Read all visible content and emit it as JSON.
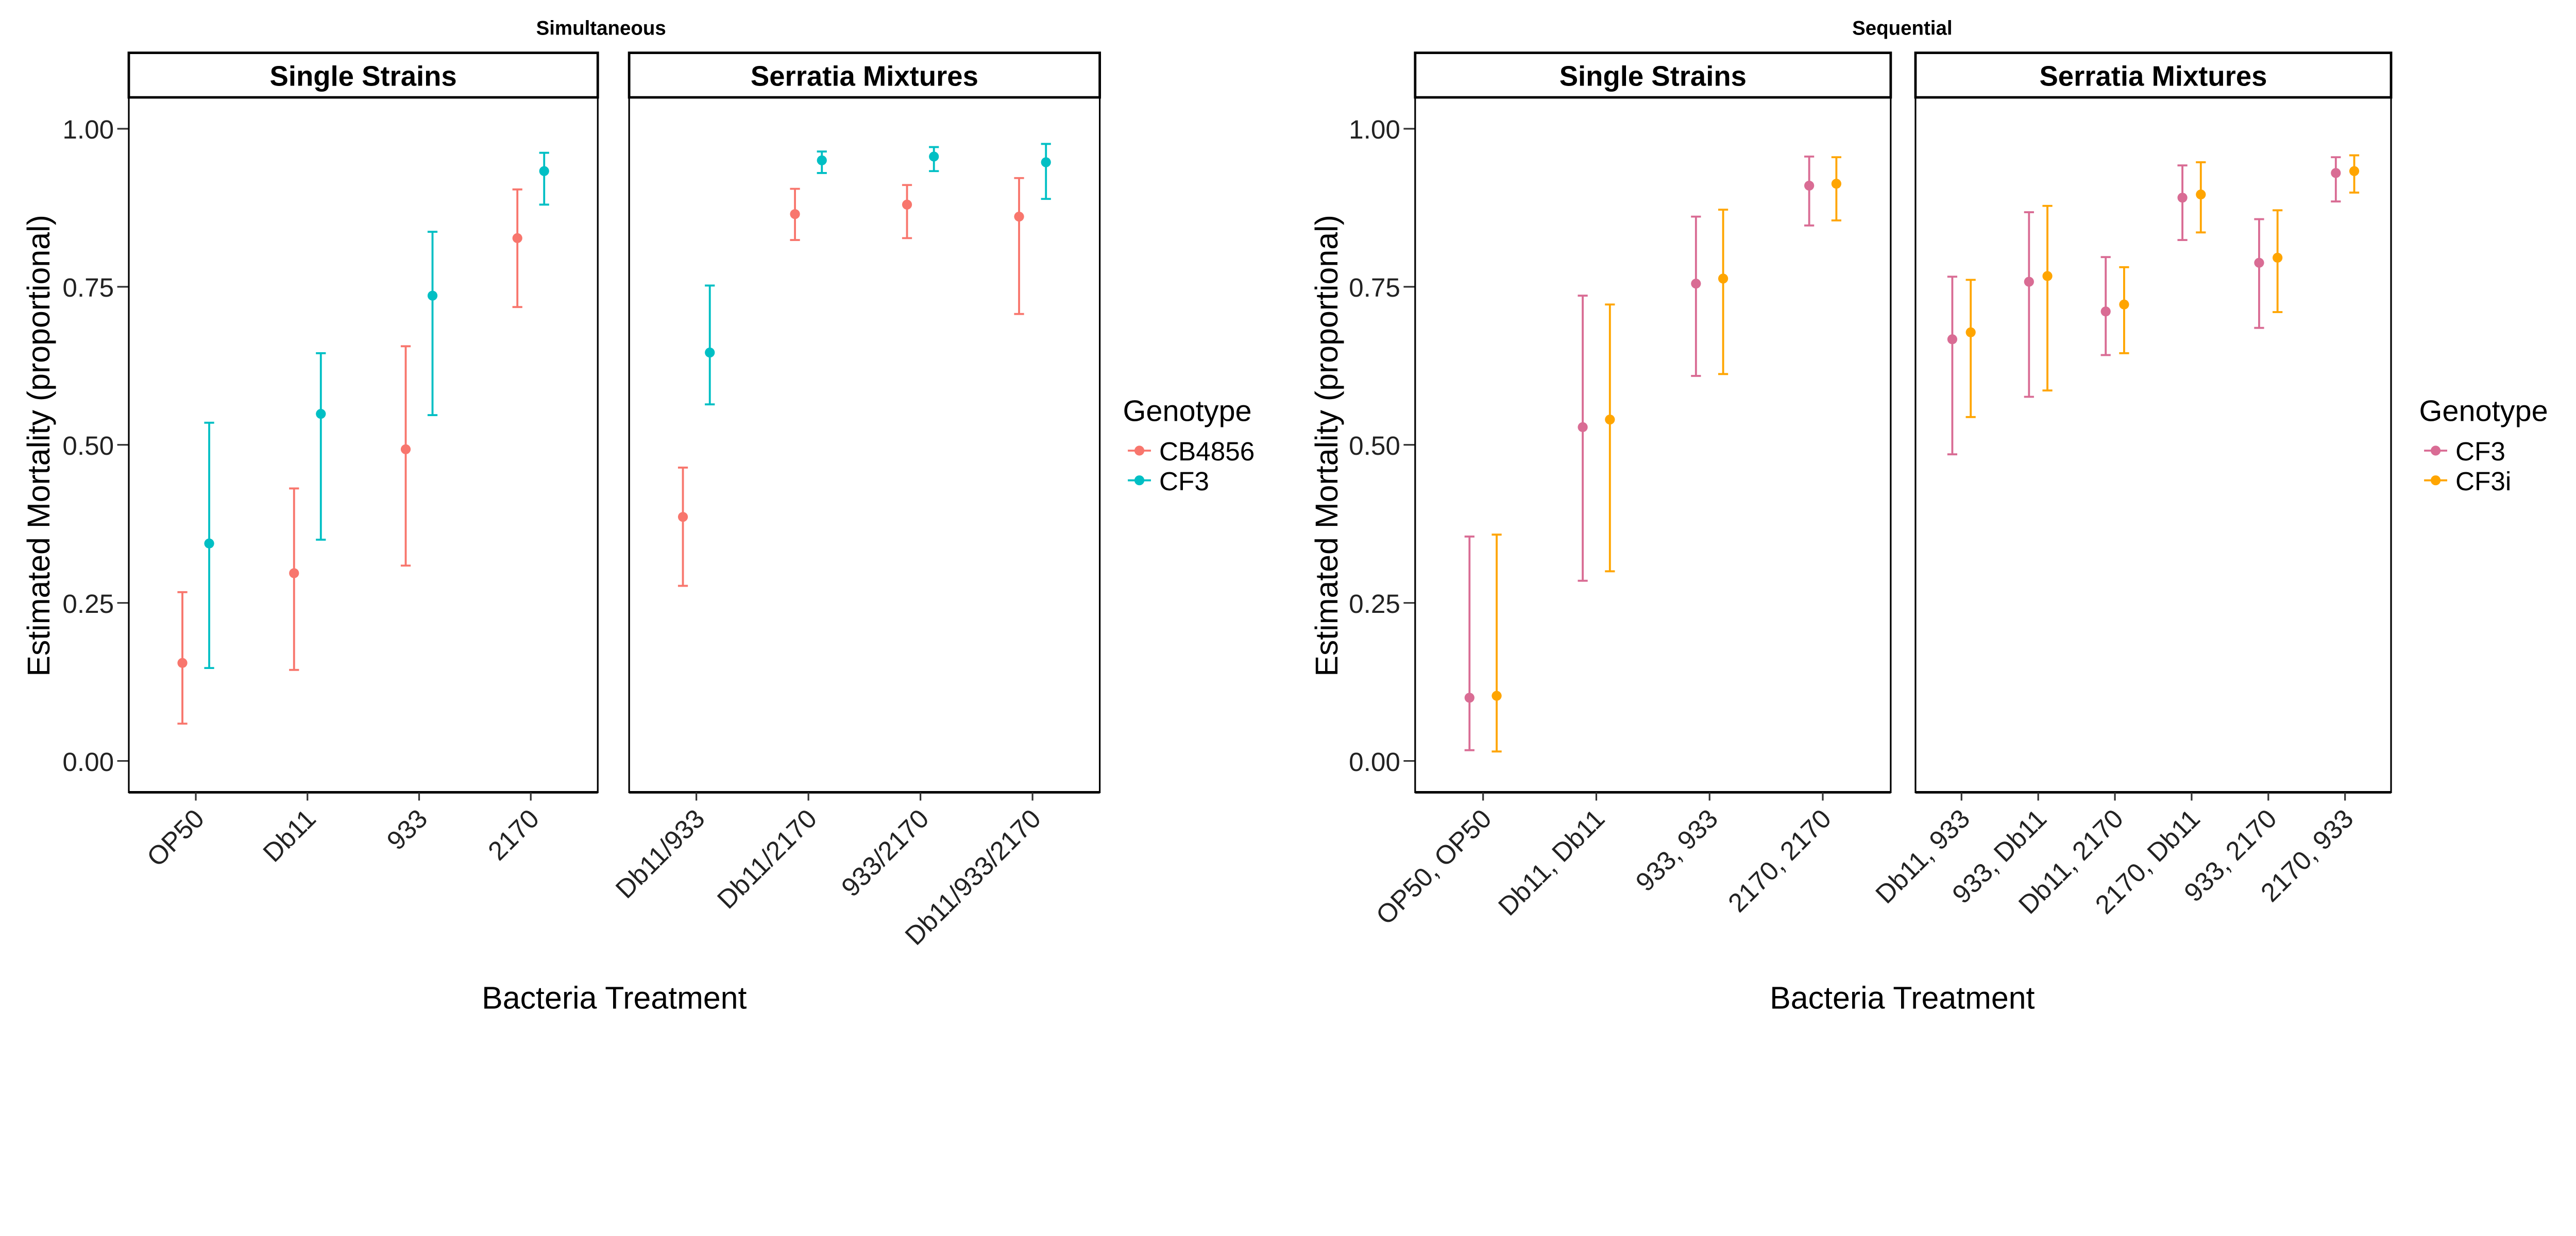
{
  "chart_data": [
    {
      "type": "scatter",
      "title": "Simultaneous",
      "xlabel": "Bacteria Treatment",
      "ylabel": "Estimated Mortality (proportional)",
      "ylim": [
        -0.05,
        1.05
      ],
      "yticks": [
        "0.00",
        "0.25",
        "0.50",
        "0.75",
        "1.00"
      ],
      "grid": false,
      "legend": {
        "title": "Genotype",
        "placement": "right",
        "entries": [
          "CB4856",
          "CF3"
        ]
      },
      "colors": {
        "CB4856": "#F8766D",
        "CF3": "#00BFC4"
      },
      "facets": [
        {
          "label": "Single Strains",
          "categories": [
            "OP50",
            "Db11",
            "933",
            "2170"
          ],
          "series": [
            {
              "name": "CB4856",
              "values": [
                0.155,
                0.297,
                0.493,
                0.827
              ],
              "lower": [
                0.059,
                0.144,
                0.309,
                0.718
              ],
              "upper": [
                0.267,
                0.431,
                0.656,
                0.904
              ]
            },
            {
              "name": "CF3",
              "values": [
                0.344,
                0.549,
                0.736,
                0.933
              ],
              "lower": [
                0.147,
                0.35,
                0.547,
                0.88
              ],
              "upper": [
                0.535,
                0.645,
                0.837,
                0.962
              ]
            }
          ]
        },
        {
          "label": "Serratia Mixtures",
          "categories": [
            "Db11/933",
            "Db11/2170",
            "933/2170",
            "Db11/933/2170"
          ],
          "series": [
            {
              "name": "CB4856",
              "values": [
                0.386,
                0.865,
                0.88,
                0.861
              ],
              "lower": [
                0.277,
                0.824,
                0.827,
                0.707
              ],
              "upper": [
                0.464,
                0.905,
                0.911,
                0.922
              ]
            },
            {
              "name": "CF3",
              "values": [
                0.646,
                0.95,
                0.956,
                0.947
              ],
              "lower": [
                0.564,
                0.93,
                0.933,
                0.889
              ],
              "upper": [
                0.752,
                0.964,
                0.971,
                0.976
              ]
            }
          ]
        }
      ]
    },
    {
      "type": "scatter",
      "title": "Sequential",
      "xlabel": "Bacteria Treatment",
      "ylabel": "Estimated Mortality (proportional)",
      "ylim": [
        -0.05,
        1.05
      ],
      "yticks": [
        "0.00",
        "0.25",
        "0.50",
        "0.75",
        "1.00"
      ],
      "grid": false,
      "legend": {
        "title": "Genotype",
        "placement": "right",
        "entries": [
          "CF3",
          "CF3i"
        ]
      },
      "colors": {
        "CF3": "#D96C94",
        "CF3i": "#FFA500"
      },
      "facets": [
        {
          "label": "Single Strains",
          "categories": [
            "OP50, OP50",
            "Db11, Db11",
            "933, 933",
            "2170, 2170"
          ],
          "series": [
            {
              "name": "CF3",
              "values": [
                0.1,
                0.528,
                0.755,
                0.91
              ],
              "lower": [
                0.017,
                0.285,
                0.609,
                0.847
              ],
              "upper": [
                0.355,
                0.736,
                0.861,
                0.956
              ]
            },
            {
              "name": "CF3i",
              "values": [
                0.103,
                0.54,
                0.763,
                0.913
              ],
              "lower": [
                0.015,
                0.3,
                0.612,
                0.855
              ],
              "upper": [
                0.358,
                0.722,
                0.872,
                0.955
              ]
            }
          ]
        },
        {
          "label": "Serratia Mixtures",
          "categories": [
            "Db11, 933",
            "933, Db11",
            "Db11, 2170",
            "2170, Db11",
            "933, 2170",
            "2170, 933"
          ],
          "series": [
            {
              "name": "CF3",
              "values": [
                0.667,
                0.758,
                0.711,
                0.891,
                0.788,
                0.93
              ],
              "lower": [
                0.485,
                0.576,
                0.642,
                0.824,
                0.685,
                0.885
              ],
              "upper": [
                0.766,
                0.868,
                0.797,
                0.942,
                0.857,
                0.955
              ]
            },
            {
              "name": "CF3i",
              "values": [
                0.678,
                0.767,
                0.722,
                0.896,
                0.796,
                0.933
              ],
              "lower": [
                0.544,
                0.586,
                0.645,
                0.836,
                0.71,
                0.899
              ],
              "upper": [
                0.761,
                0.878,
                0.781,
                0.947,
                0.871,
                0.958
              ]
            }
          ]
        }
      ]
    }
  ]
}
